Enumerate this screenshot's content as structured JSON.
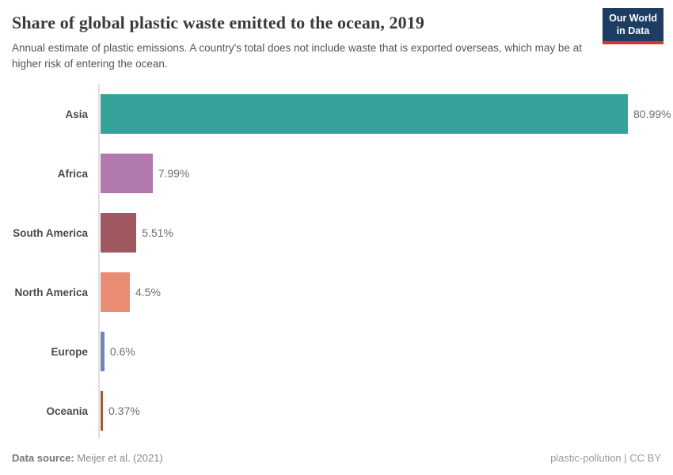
{
  "header": {
    "title": "Share of global plastic waste emitted to the ocean, 2019",
    "subtitle": "Annual estimate of plastic emissions. A country's total does not include waste that is exported overseas, which may be at higher risk of entering the ocean.",
    "logo": {
      "line1": "Our World",
      "line2": "in Data",
      "bg_color": "#1d3d63",
      "accent_color": "#d8352f"
    }
  },
  "chart_data": {
    "type": "bar",
    "orientation": "horizontal",
    "title": "Share of global plastic waste emitted to the ocean, 2019",
    "categories": [
      "Asia",
      "Africa",
      "South America",
      "North America",
      "Europe",
      "Oceania"
    ],
    "values": [
      80.99,
      7.99,
      5.51,
      4.5,
      0.6,
      0.37
    ],
    "value_labels": [
      "80.99%",
      "7.99%",
      "5.51%",
      "4.5%",
      "0.6%",
      "0.37%"
    ],
    "bar_colors": [
      "#35a29a",
      "#b279b0",
      "#a05860",
      "#ea8b73",
      "#6d87b9",
      "#a4593c"
    ],
    "xlabel": "",
    "ylabel": "",
    "xlim": [
      0,
      85
    ],
    "grid": false,
    "legend": "none",
    "axis_line_color": "#e0e0e0"
  },
  "footer": {
    "source_label": "Data source:",
    "source_value": "Meijer et al. (2021)",
    "license": "plastic-pollution | CC BY"
  }
}
